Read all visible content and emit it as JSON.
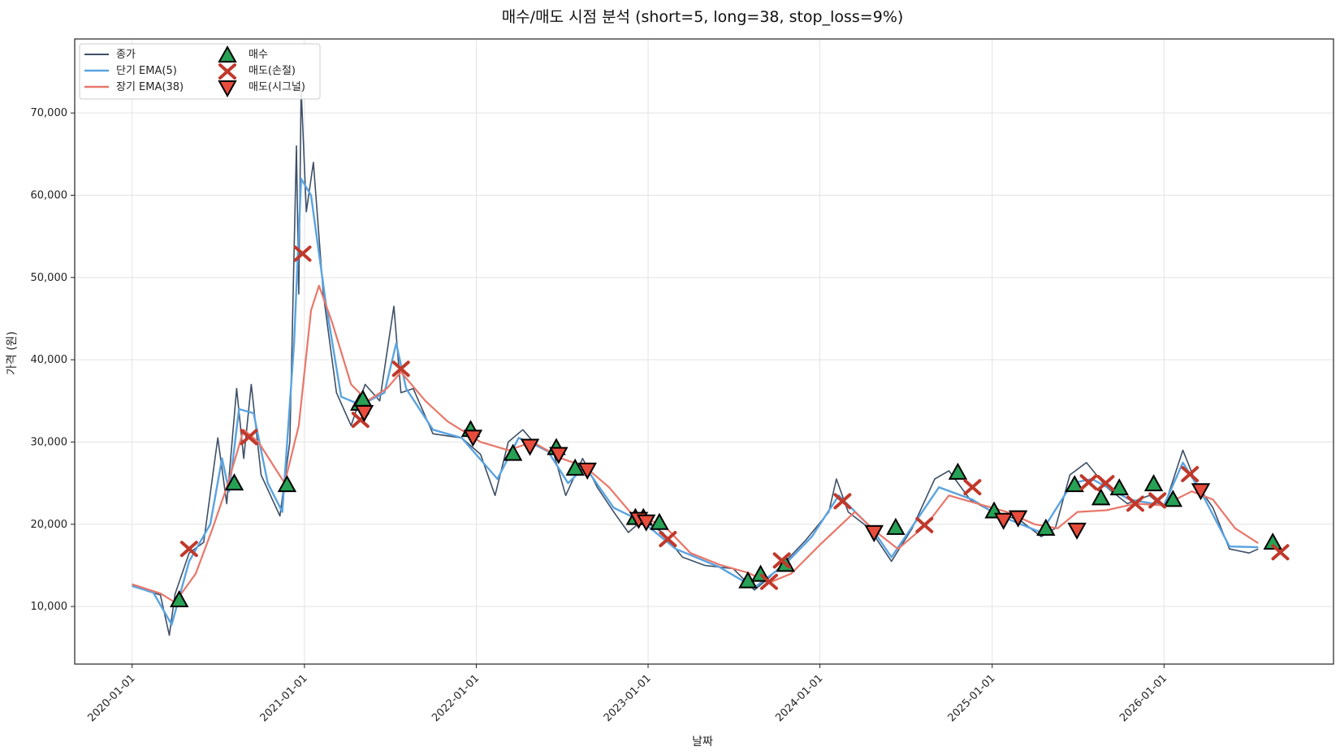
{
  "chart_data": {
    "type": "line",
    "title": "매수/매도 시점 분석 (short=5, long=38, stop_loss=9%)",
    "xlabel": "날짜",
    "ylabel": "가격 (원)",
    "x_ticks": [
      "2020-01-01",
      "2021-01-01",
      "2022-01-01",
      "2023-01-01",
      "2024-01-01",
      "2025-01-01",
      "2026-01-01"
    ],
    "y_ticks": [
      "10,000",
      "20,000",
      "30,000",
      "40,000",
      "50,000",
      "60,000",
      "70,000"
    ],
    "xlim": [
      "2019-09-01",
      "2026-12-27"
    ],
    "ylim": [
      3000,
      79000
    ],
    "grid": true,
    "legend_position": "top-left",
    "colors": {
      "close": "#3d4f66",
      "ema_short": "#5aa3e0",
      "ema_long": "#e8776a",
      "buy": "#27a155",
      "sell_stop": "#c0392b",
      "sell_signal": "#e74c3c"
    },
    "series": [
      {
        "name": "종가",
        "points": [
          [
            "2020-01-01",
            12600
          ],
          [
            "2020-02-01",
            11900
          ],
          [
            "2020-03-01",
            11400
          ],
          [
            "2020-03-20",
            6500
          ],
          [
            "2020-04-01",
            11500
          ],
          [
            "2020-05-01",
            16500
          ],
          [
            "2020-06-01",
            17800
          ],
          [
            "2020-07-01",
            30500
          ],
          [
            "2020-07-20",
            22500
          ],
          [
            "2020-08-10",
            36500
          ],
          [
            "2020-08-25",
            28000
          ],
          [
            "2020-09-10",
            37000
          ],
          [
            "2020-10-01",
            26000
          ],
          [
            "2020-11-10",
            21000
          ],
          [
            "2020-12-01",
            30000
          ],
          [
            "2020-12-15",
            66000
          ],
          [
            "2020-12-20",
            48000
          ],
          [
            "2020-12-25",
            73000
          ],
          [
            "2021-01-05",
            58000
          ],
          [
            "2021-01-20",
            64000
          ],
          [
            "2021-02-10",
            48000
          ],
          [
            "2021-03-10",
            36000
          ],
          [
            "2021-04-10",
            32000
          ],
          [
            "2021-05-10",
            37000
          ],
          [
            "2021-06-10",
            35000
          ],
          [
            "2021-07-10",
            46500
          ],
          [
            "2021-07-25",
            36000
          ],
          [
            "2021-08-20",
            36500
          ],
          [
            "2021-10-01",
            31000
          ],
          [
            "2021-12-01",
            30500
          ],
          [
            "2022-01-10",
            28500
          ],
          [
            "2022-02-10",
            23500
          ],
          [
            "2022-03-10",
            30000
          ],
          [
            "2022-04-10",
            31500
          ],
          [
            "2022-05-10",
            29500
          ],
          [
            "2022-06-15",
            28500
          ],
          [
            "2022-07-10",
            23500
          ],
          [
            "2022-08-15",
            28000
          ],
          [
            "2022-09-15",
            24500
          ],
          [
            "2022-10-20",
            21500
          ],
          [
            "2022-11-20",
            19000
          ],
          [
            "2022-12-20",
            20500
          ],
          [
            "2023-02-01",
            19000
          ],
          [
            "2023-03-15",
            16000
          ],
          [
            "2023-05-01",
            15000
          ],
          [
            "2023-07-01",
            14600
          ],
          [
            "2023-08-15",
            12000
          ],
          [
            "2023-09-15",
            13500
          ],
          [
            "2023-10-20",
            15500
          ],
          [
            "2023-12-01",
            18000
          ],
          [
            "2024-01-20",
            21500
          ],
          [
            "2024-02-05",
            25500
          ],
          [
            "2024-03-01",
            21500
          ],
          [
            "2024-04-15",
            19500
          ],
          [
            "2024-06-01",
            15500
          ],
          [
            "2024-07-15",
            19500
          ],
          [
            "2024-09-01",
            25500
          ],
          [
            "2024-10-01",
            26500
          ],
          [
            "2024-11-15",
            23000
          ],
          [
            "2025-01-01",
            21500
          ],
          [
            "2025-03-01",
            20500
          ],
          [
            "2025-04-15",
            18500
          ],
          [
            "2025-05-15",
            19500
          ],
          [
            "2025-06-15",
            26000
          ],
          [
            "2025-07-20",
            27500
          ],
          [
            "2025-09-01",
            24500
          ],
          [
            "2025-10-15",
            22500
          ],
          [
            "2025-12-01",
            23500
          ],
          [
            "2026-01-01",
            22000
          ],
          [
            "2026-02-10",
            29000
          ],
          [
            "2026-03-10",
            25000
          ],
          [
            "2026-04-15",
            22000
          ],
          [
            "2026-05-20",
            17000
          ],
          [
            "2026-07-01",
            16500
          ],
          [
            "2026-07-20",
            17000
          ]
        ]
      },
      {
        "name": "단기 EMA(5)",
        "points": [
          [
            "2020-01-01",
            12500
          ],
          [
            "2020-02-15",
            11700
          ],
          [
            "2020-03-25",
            7800
          ],
          [
            "2020-05-01",
            15500
          ],
          [
            "2020-06-15",
            20000
          ],
          [
            "2020-07-10",
            28000
          ],
          [
            "2020-07-25",
            24000
          ],
          [
            "2020-08-15",
            34000
          ],
          [
            "2020-09-15",
            33500
          ],
          [
            "2020-10-15",
            25000
          ],
          [
            "2020-11-15",
            21500
          ],
          [
            "2020-12-10",
            42000
          ],
          [
            "2020-12-25",
            62000
          ],
          [
            "2021-01-15",
            60000
          ],
          [
            "2021-02-15",
            47000
          ],
          [
            "2021-03-20",
            35500
          ],
          [
            "2021-05-01",
            34500
          ],
          [
            "2021-06-20",
            36000
          ],
          [
            "2021-07-15",
            42000
          ],
          [
            "2021-08-05",
            36500
          ],
          [
            "2021-10-01",
            31500
          ],
          [
            "2021-12-01",
            30500
          ],
          [
            "2022-02-15",
            25500
          ],
          [
            "2022-04-01",
            30500
          ],
          [
            "2022-06-01",
            29000
          ],
          [
            "2022-07-15",
            25000
          ],
          [
            "2022-08-20",
            27000
          ],
          [
            "2022-10-20",
            22000
          ],
          [
            "2022-12-20",
            20300
          ],
          [
            "2023-03-01",
            17000
          ],
          [
            "2023-06-01",
            14800
          ],
          [
            "2023-08-15",
            12300
          ],
          [
            "2023-10-20",
            15200
          ],
          [
            "2023-12-15",
            18500
          ],
          [
            "2024-02-10",
            23500
          ],
          [
            "2024-04-20",
            19500
          ],
          [
            "2024-06-01",
            16000
          ],
          [
            "2024-09-10",
            24500
          ],
          [
            "2024-11-20",
            23000
          ],
          [
            "2025-01-10",
            21200
          ],
          [
            "2025-04-15",
            19000
          ],
          [
            "2025-06-20",
            25000
          ],
          [
            "2025-08-01",
            25500
          ],
          [
            "2025-10-20",
            23000
          ],
          [
            "2026-01-01",
            22300
          ],
          [
            "2026-02-10",
            27500
          ],
          [
            "2026-03-20",
            24000
          ],
          [
            "2026-05-20",
            17300
          ],
          [
            "2026-07-20",
            17200
          ]
        ]
      },
      {
        "name": "장기 EMA(38)",
        "points": [
          [
            "2020-01-01",
            12700
          ],
          [
            "2020-03-01",
            11600
          ],
          [
            "2020-04-01",
            10500
          ],
          [
            "2020-05-15",
            14000
          ],
          [
            "2020-06-20",
            19500
          ],
          [
            "2020-07-20",
            24500
          ],
          [
            "2020-08-25",
            31500
          ],
          [
            "2020-09-25",
            30000
          ],
          [
            "2020-11-20",
            25000
          ],
          [
            "2020-12-20",
            32000
          ],
          [
            "2021-01-15",
            46000
          ],
          [
            "2021-02-01",
            49000
          ],
          [
            "2021-03-01",
            44500
          ],
          [
            "2021-04-10",
            37000
          ],
          [
            "2021-05-15",
            35000
          ],
          [
            "2021-06-25",
            36500
          ],
          [
            "2021-07-25",
            38500
          ],
          [
            "2021-09-15",
            35000
          ],
          [
            "2021-11-01",
            32500
          ],
          [
            "2022-01-10",
            30000
          ],
          [
            "2022-03-10",
            29000
          ],
          [
            "2022-05-01",
            30000
          ],
          [
            "2022-07-01",
            28000
          ],
          [
            "2022-08-20",
            27000
          ],
          [
            "2022-10-10",
            24500
          ],
          [
            "2022-12-01",
            21000
          ],
          [
            "2023-02-01",
            20000
          ],
          [
            "2023-04-01",
            16500
          ],
          [
            "2023-06-01",
            15100
          ],
          [
            "2023-08-01",
            14100
          ],
          [
            "2023-09-15",
            12900
          ],
          [
            "2023-11-01",
            14000
          ],
          [
            "2024-01-01",
            17500
          ],
          [
            "2024-03-15",
            21500
          ],
          [
            "2024-05-01",
            19000
          ],
          [
            "2024-06-15",
            17000
          ],
          [
            "2024-08-15",
            20000
          ],
          [
            "2024-10-01",
            23500
          ],
          [
            "2024-12-01",
            22500
          ],
          [
            "2025-02-01",
            21500
          ],
          [
            "2025-04-01",
            20000
          ],
          [
            "2025-05-20",
            19500
          ],
          [
            "2025-07-01",
            21500
          ],
          [
            "2025-09-01",
            21700
          ],
          [
            "2025-11-01",
            22500
          ],
          [
            "2026-01-01",
            22300
          ],
          [
            "2026-03-01",
            24000
          ],
          [
            "2026-04-15",
            23000
          ],
          [
            "2026-06-01",
            19500
          ],
          [
            "2026-07-20",
            17700
          ]
        ]
      }
    ],
    "markers": [
      {
        "name": "매수",
        "points": [
          [
            "2020-04-10",
            10800
          ],
          [
            "2020-08-05",
            25000
          ],
          [
            "2020-11-25",
            24800
          ],
          [
            "2021-04-28",
            34700
          ],
          [
            "2021-05-05",
            35200
          ],
          [
            "2021-12-20",
            31500
          ],
          [
            "2022-03-20",
            28600
          ],
          [
            "2022-06-20",
            29300
          ],
          [
            "2022-07-30",
            26800
          ],
          [
            "2022-12-05",
            20800
          ],
          [
            "2022-12-22",
            20800
          ],
          [
            "2023-01-25",
            20200
          ],
          [
            "2023-08-01",
            13100
          ],
          [
            "2023-08-28",
            13900
          ],
          [
            "2023-10-20",
            15100
          ],
          [
            "2024-06-10",
            19600
          ],
          [
            "2024-10-20",
            26300
          ],
          [
            "2025-01-05",
            21600
          ],
          [
            "2025-04-25",
            19500
          ],
          [
            "2025-06-25",
            24800
          ],
          [
            "2025-08-20",
            23200
          ],
          [
            "2025-09-28",
            24400
          ],
          [
            "2025-12-10",
            24900
          ],
          [
            "2026-01-20",
            23000
          ],
          [
            "2026-08-20",
            17800
          ]
        ]
      },
      {
        "name": "매도(손절)",
        "points": [
          [
            "2020-05-01",
            17000
          ],
          [
            "2020-09-05",
            30600
          ],
          [
            "2020-12-28",
            52900
          ],
          [
            "2021-04-30",
            32700
          ],
          [
            "2021-07-25",
            38900
          ],
          [
            "2023-02-12",
            18200
          ],
          [
            "2023-09-15",
            13000
          ],
          [
            "2023-10-12",
            15600
          ],
          [
            "2024-02-18",
            22800
          ],
          [
            "2024-08-10",
            19900
          ],
          [
            "2024-11-20",
            24500
          ],
          [
            "2025-07-25",
            25100
          ],
          [
            "2025-08-30",
            25000
          ],
          [
            "2025-11-01",
            22500
          ],
          [
            "2025-12-18",
            22900
          ],
          [
            "2026-02-25",
            26100
          ],
          [
            "2026-09-05",
            16600
          ]
        ]
      },
      {
        "name": "매도(시그널)",
        "points": [
          [
            "2021-05-08",
            33600
          ],
          [
            "2021-12-25",
            30600
          ],
          [
            "2022-04-25",
            29500
          ],
          [
            "2022-06-25",
            28500
          ],
          [
            "2022-08-25",
            26600
          ],
          [
            "2022-12-12",
            20600
          ],
          [
            "2022-12-28",
            20300
          ],
          [
            "2024-04-25",
            19000
          ],
          [
            "2025-01-25",
            20500
          ],
          [
            "2025-02-25",
            20800
          ],
          [
            "2025-06-30",
            19300
          ],
          [
            "2026-03-20",
            24100
          ]
        ]
      }
    ]
  }
}
